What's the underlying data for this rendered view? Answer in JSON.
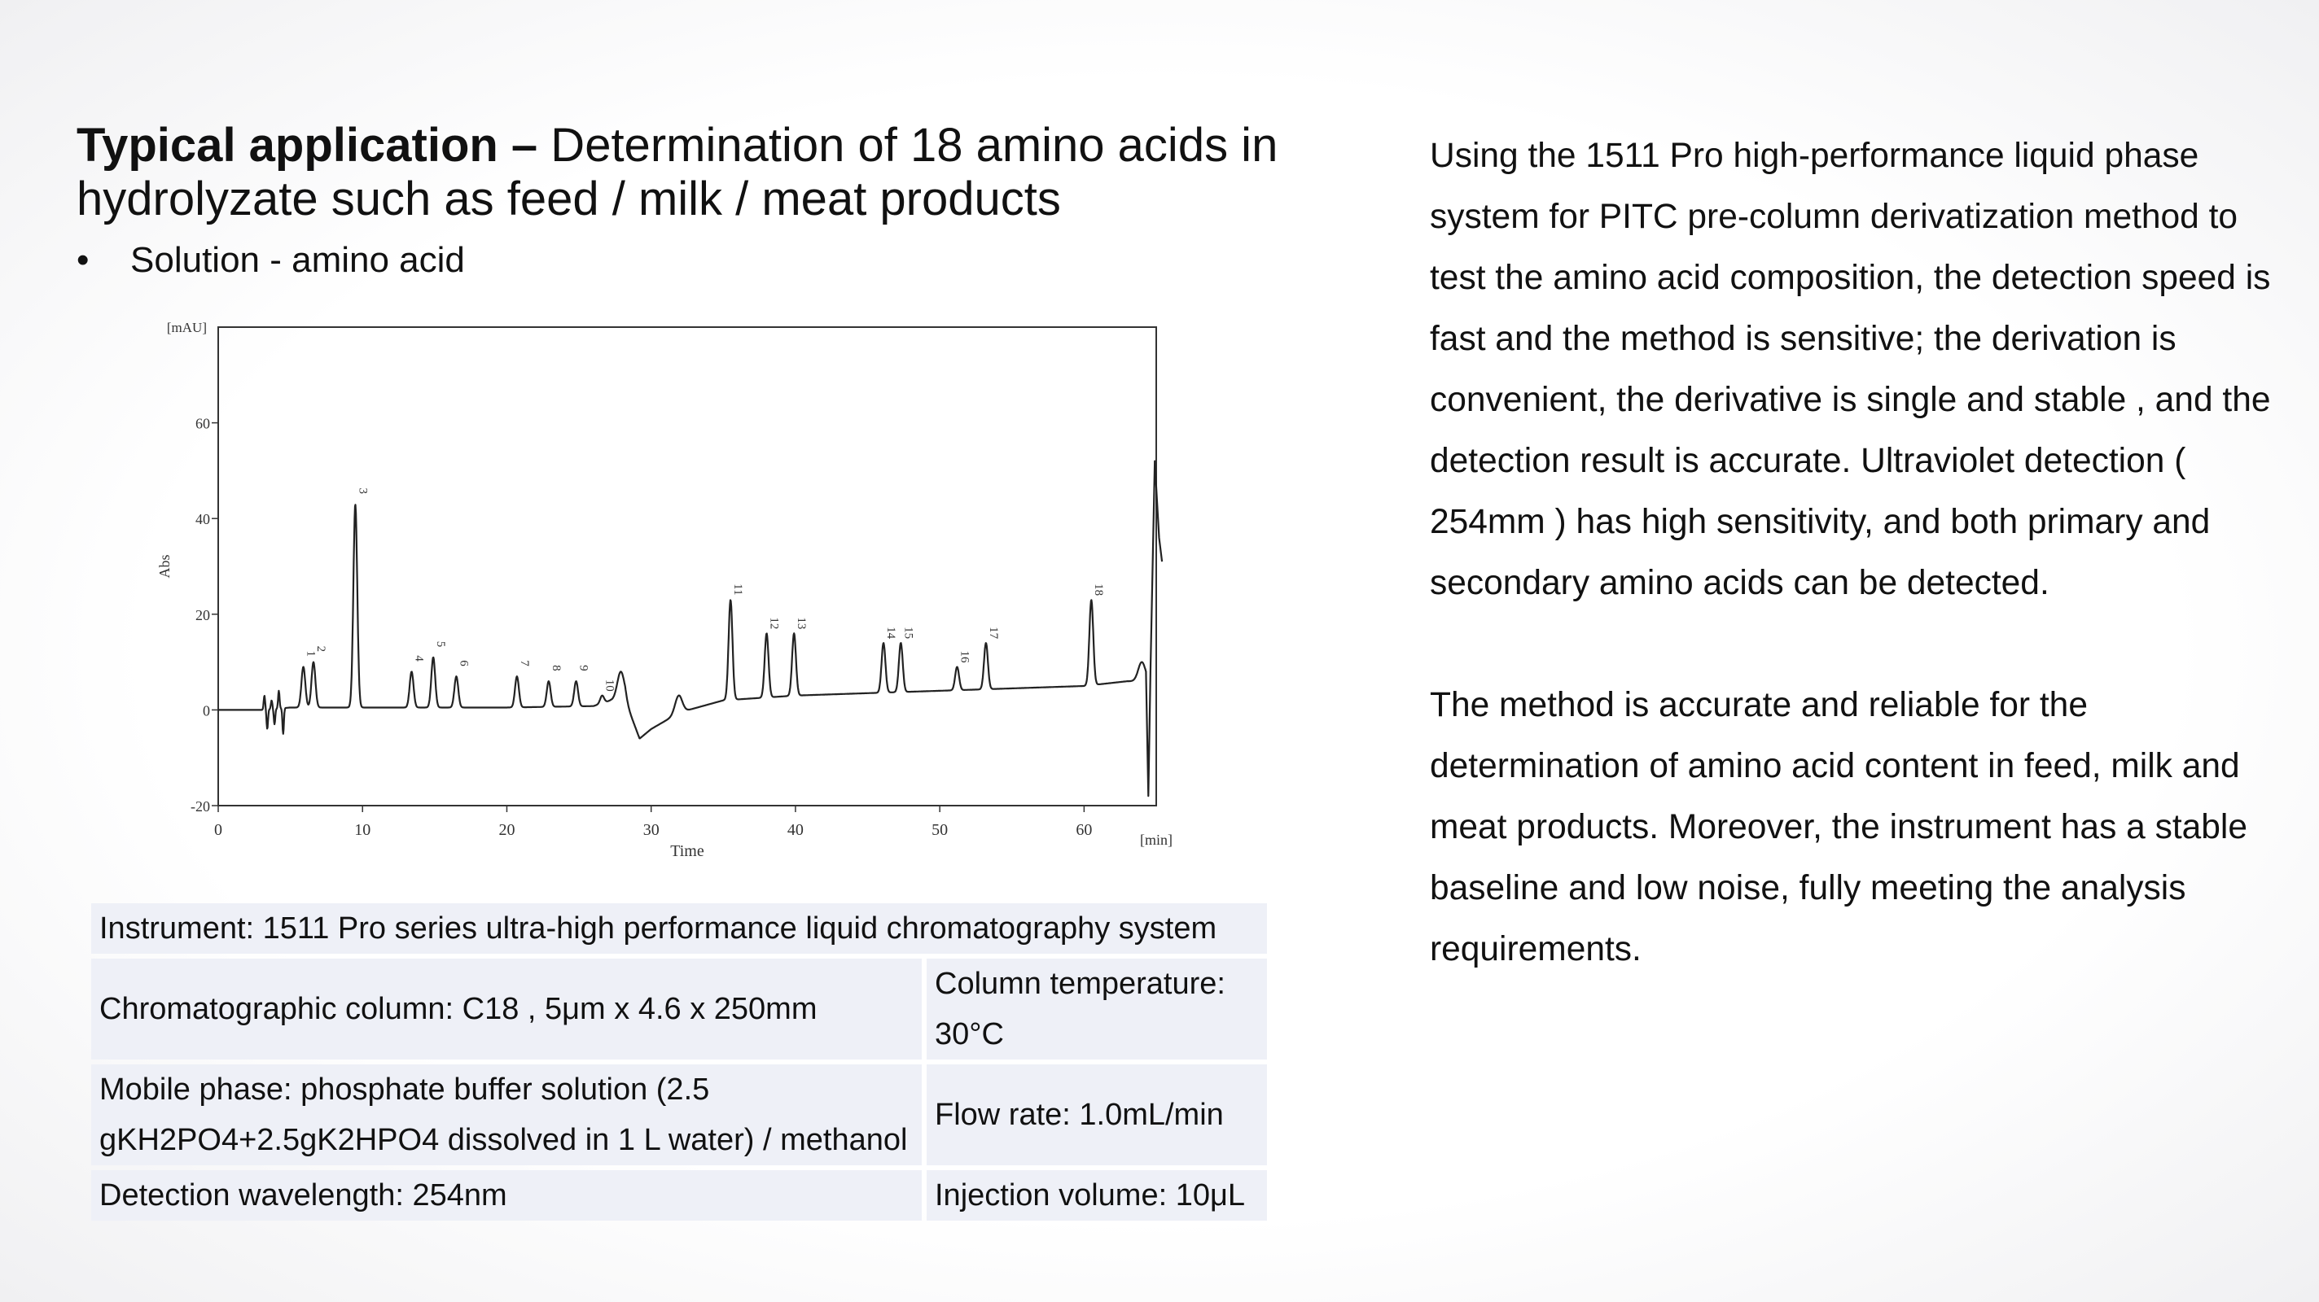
{
  "title": {
    "bold": "Typical application –",
    "rest_line1": " Determination of 18 amino acids in",
    "line2": "hydrolyzate such as feed / milk / meat products"
  },
  "bullet": {
    "marker": "•",
    "text": "Solution - amino acid"
  },
  "chart_data": {
    "type": "line",
    "xlabel": "Time",
    "ylabel": "Abs",
    "xunit": "[min]",
    "yunit": "[mAU]",
    "xlim": [
      0,
      65
    ],
    "ylim": [
      -20,
      80
    ],
    "xticks": [
      0,
      10,
      20,
      30,
      40,
      50,
      60
    ],
    "yticks": [
      -20,
      0,
      20,
      40,
      60
    ],
    "baseline": [
      [
        0,
        0
      ],
      [
        3,
        0
      ],
      [
        5,
        0.5
      ],
      [
        8,
        0.5
      ],
      [
        12,
        0.5
      ],
      [
        20,
        0.5
      ],
      [
        26,
        0.8
      ],
      [
        27.2,
        2
      ],
      [
        28.2,
        2
      ],
      [
        29.2,
        -6
      ],
      [
        30,
        -4
      ],
      [
        32,
        -0.5
      ],
      [
        35,
        2
      ],
      [
        40,
        3
      ],
      [
        45,
        3.5
      ],
      [
        50,
        4
      ],
      [
        55,
        4.5
      ],
      [
        60,
        5
      ],
      [
        63,
        6
      ],
      [
        64.3,
        6
      ]
    ],
    "peaks": [
      {
        "label": "1",
        "x": 5.9,
        "y": 9
      },
      {
        "label": "2",
        "x": 6.6,
        "y": 10
      },
      {
        "label": "3",
        "x": 9.5,
        "y": 43
      },
      {
        "label": "4",
        "x": 13.4,
        "y": 8
      },
      {
        "label": "5",
        "x": 14.9,
        "y": 11
      },
      {
        "label": "6",
        "x": 16.5,
        "y": 7
      },
      {
        "label": "7",
        "x": 20.7,
        "y": 7
      },
      {
        "label": "8",
        "x": 22.9,
        "y": 6
      },
      {
        "label": "9",
        "x": 24.8,
        "y": 6
      },
      {
        "label": "10",
        "x": 26.6,
        "y": 3
      },
      {
        "label": "11",
        "x": 35.5,
        "y": 23
      },
      {
        "label": "12",
        "x": 38.0,
        "y": 16
      },
      {
        "label": "13",
        "x": 39.9,
        "y": 16
      },
      {
        "label": "14",
        "x": 46.1,
        "y": 14
      },
      {
        "label": "15",
        "x": 47.3,
        "y": 14
      },
      {
        "label": "16",
        "x": 51.2,
        "y": 9
      },
      {
        "label": "17",
        "x": 53.2,
        "y": 14
      },
      {
        "label": "18",
        "x": 60.5,
        "y": 23
      }
    ],
    "baseline_disturbances": [
      {
        "x": 27.9,
        "y": 8
      },
      {
        "x": 31.9,
        "y": 3
      },
      {
        "x": 64.0,
        "y": 10
      }
    ],
    "solvent_front": [
      {
        "x": 3.2,
        "y": 3
      },
      {
        "x": 3.4,
        "y": -4
      },
      {
        "x": 3.7,
        "y": 2
      },
      {
        "x": 3.9,
        "y": -3
      },
      {
        "x": 4.2,
        "y": 4
      },
      {
        "x": 4.5,
        "y": -5
      }
    ],
    "end_spike": [
      [
        64.3,
        6
      ],
      [
        64.45,
        -18
      ],
      [
        64.6,
        8
      ],
      [
        64.9,
        52
      ],
      [
        65.2,
        36
      ],
      [
        65.4,
        31
      ]
    ]
  },
  "params": {
    "instrument": "Instrument: 1511 Pro series ultra-high performance liquid chromatography system",
    "column": "Chromatographic column: C18 , 5μm x 4.6 x 250mm",
    "column_temp_line1": "Column temperature:",
    "column_temp_line2": "30°C",
    "mobile_phase_line1": "Mobile phase: phosphate buffer solution (2.5",
    "mobile_phase_line2": "gKH2PO4+2.5gK2HPO4 dissolved in 1 L water) / methanol",
    "flow_rate": "Flow rate: 1.0mL/min",
    "wavelength": "Detection wavelength: 254nm",
    "injection": "Injection volume: 10μL"
  },
  "description": {
    "paragraph1": "Using the 1511 Pro high-performance liquid phase system for PITC pre-column derivatization method to test the amino acid composition, the detection speed is fast and the method is sensitive; the derivation is convenient, the derivative is single and stable , and the detection result is accurate. Ultraviolet detection ( 254mm ) has high sensitivity, and both primary and secondary amino acids can be detected.",
    "paragraph2": "The method is accurate and reliable for the determination of amino acid content in feed, milk and meat products. Moreover, the instrument has a stable baseline and low noise, fully meeting the analysis requirements."
  }
}
